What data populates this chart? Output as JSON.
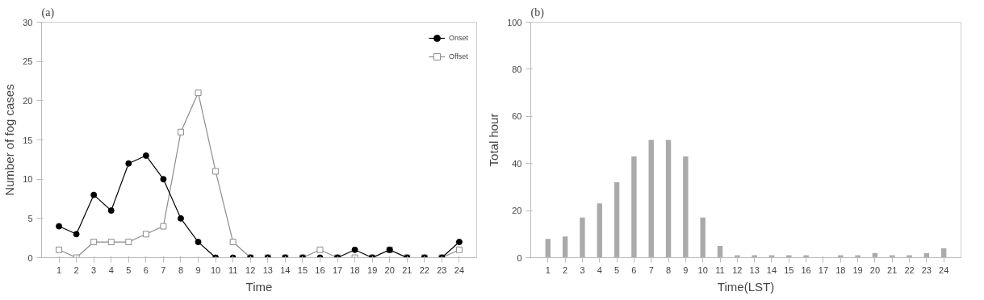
{
  "chart_data": [
    {
      "type": "line",
      "title": "(a)",
      "xlabel": "Time",
      "ylabel": "Number of fog cases",
      "x": [
        1,
        2,
        3,
        4,
        5,
        6,
        7,
        8,
        9,
        10,
        11,
        12,
        13,
        14,
        15,
        16,
        17,
        18,
        19,
        20,
        21,
        22,
        23,
        24
      ],
      "series": [
        {
          "name": "Onset",
          "color": "#000000",
          "marker": "circle",
          "values": [
            4,
            3,
            8,
            6,
            12,
            13,
            10,
            5,
            2,
            0,
            0,
            0,
            0,
            0,
            0,
            0,
            0,
            1,
            0,
            1,
            0,
            0,
            0,
            2
          ]
        },
        {
          "name": "Offset",
          "color": "#8c8c8c",
          "marker": "square",
          "values": [
            1,
            0,
            2,
            2,
            2,
            3,
            4,
            16,
            21,
            11,
            2,
            0,
            0,
            0,
            0,
            1,
            0,
            0,
            0,
            1,
            0,
            0,
            0,
            1
          ]
        }
      ],
      "xlim": [
        0,
        25
      ],
      "xticks": [
        1,
        2,
        3,
        4,
        5,
        6,
        7,
        8,
        9,
        10,
        11,
        12,
        13,
        14,
        15,
        16,
        17,
        18,
        19,
        20,
        21,
        22,
        23,
        24
      ],
      "ylim": [
        0,
        30
      ],
      "yticks": [
        0,
        5,
        10,
        15,
        20,
        25,
        30
      ],
      "grid": false,
      "legend": "top right",
      "line_style": "solid"
    },
    {
      "type": "bar",
      "title": "(b)",
      "xlabel": "Time(LST)",
      "ylabel": "Total hour",
      "x": [
        1,
        2,
        3,
        4,
        5,
        6,
        7,
        8,
        9,
        10,
        11,
        12,
        13,
        14,
        15,
        16,
        17,
        18,
        19,
        20,
        21,
        22,
        23,
        24
      ],
      "values": [
        8,
        9,
        17,
        23,
        32,
        43,
        50,
        50,
        43,
        17,
        5,
        1,
        1,
        1,
        1,
        1,
        0,
        1,
        1,
        2,
        1,
        1,
        2,
        4
      ],
      "color": "#aaaaaa",
      "xlim": [
        0,
        25
      ],
      "xticks": [
        1,
        2,
        3,
        4,
        5,
        6,
        7,
        8,
        9,
        10,
        11,
        12,
        13,
        14,
        15,
        16,
        17,
        18,
        19,
        20,
        21,
        22,
        23,
        24
      ],
      "ylim": [
        0,
        100
      ],
      "yticks": [
        0,
        20,
        40,
        60,
        80,
        100
      ],
      "grid": false
    }
  ]
}
